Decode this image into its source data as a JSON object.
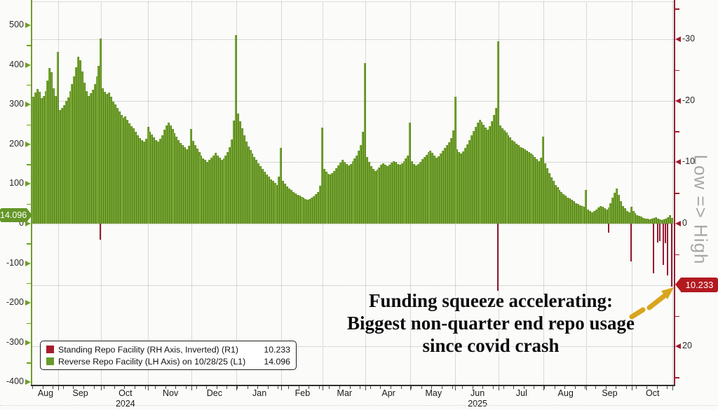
{
  "chart_data": {
    "type": "bar",
    "title": "",
    "left_axis": {
      "tick_labels": [
        500,
        400,
        300,
        200,
        100,
        0,
        -100,
        -200,
        -300,
        -400
      ],
      "minor_ticks": [
        450,
        350,
        250,
        150,
        50,
        -50,
        -150,
        -250,
        -350
      ],
      "range": [
        -430,
        565
      ],
      "current_value_badge": "14.096"
    },
    "right_axis": {
      "inverted": true,
      "tick_labels": [
        -30,
        -20,
        -10,
        0,
        20
      ],
      "minor_ticks": [
        -35,
        -25,
        -15,
        -5,
        5,
        15,
        25
      ],
      "gridline_values": [
        -30,
        -20,
        -10,
        0,
        10,
        20
      ],
      "range": [
        -36,
        26
      ],
      "current_value_badge": "10.233",
      "side_label": "Low => High"
    },
    "x_axis": {
      "months": [
        {
          "label": "Aug",
          "days": 13
        },
        {
          "label": "Sep",
          "days": 21
        },
        {
          "label": "Oct",
          "days": 23
        },
        {
          "label": "Nov",
          "days": 21
        },
        {
          "label": "Dec",
          "days": 22
        },
        {
          "label": "Jan",
          "days": 22
        },
        {
          "label": "Feb",
          "days": 20
        },
        {
          "label": "Mar",
          "days": 21
        },
        {
          "label": "Apr",
          "days": 22
        },
        {
          "label": "May",
          "days": 22
        },
        {
          "label": "Jun",
          "days": 21
        },
        {
          "label": "Jul",
          "days": 22
        },
        {
          "label": "Aug",
          "days": 21
        },
        {
          "label": "Sep",
          "days": 22
        },
        {
          "label": "Oct",
          "days": 20
        }
      ],
      "years": [
        {
          "label": "2024",
          "month_index": 2
        },
        {
          "label": "2025",
          "month_index": 10
        }
      ]
    },
    "series": [
      {
        "name": "Reverse Repo Facility (LH Axis) on 10/28/25 (L1)",
        "axis": "left",
        "color": "#77a633",
        "last_value": 14.096,
        "values": [
          319,
          331,
          340,
          332,
          316,
          322,
          334,
          361,
          392,
          381,
          341,
          322,
          433,
          287,
          292,
          299,
          310,
          318,
          334,
          352,
          371,
          394,
          421,
          412,
          383,
          356,
          334,
          322,
          328,
          338,
          352,
          371,
          397,
          466,
          341,
          332,
          326,
          330,
          319,
          308,
          300,
          291,
          282,
          273,
          266,
          271,
          262,
          252,
          246,
          240,
          231,
          222,
          215,
          210,
          206,
          214,
          244,
          232,
          224,
          218,
          211,
          206,
          214,
          223,
          236,
          247,
          254,
          247,
          238,
          228,
          219,
          211,
          204,
          198,
          192,
          187,
          196,
          238,
          208,
          198,
          189,
          180,
          172,
          165,
          160,
          156,
          160,
          166,
          172,
          178,
          172,
          166,
          160,
          165,
          172,
          180,
          192,
          212,
          260,
          475,
          278,
          258,
          240,
          222,
          207,
          195,
          185,
          176,
          168,
          160,
          152,
          144,
          137,
          130,
          124,
          118,
          112,
          107,
          102,
          98,
          118,
          191,
          108,
          100,
          94,
          89,
          84,
          80,
          76,
          73,
          70,
          67,
          65,
          62,
          60,
          62,
          65,
          69,
          74,
          80,
          95,
          242,
          138,
          130,
          126,
          123,
          127,
          133,
          140,
          147,
          154,
          160,
          156,
          151,
          147,
          151,
          157,
          164,
          172,
          183,
          198,
          232,
          405,
          168,
          155,
          144,
          137,
          132,
          136,
          142,
          148,
          152,
          148,
          144,
          148,
          153,
          158,
          155,
          151,
          148,
          152,
          158,
          164,
          172,
          255,
          158,
          150,
          146,
          150,
          156,
          162,
          168,
          174,
          180,
          184,
          178,
          172,
          166,
          170,
          176,
          183,
          190,
          197,
          205,
          216,
          235,
          320,
          188,
          181,
          177,
          182,
          190,
          200,
          211,
          222,
          233,
          244,
          254,
          262,
          256,
          249,
          242,
          236,
          245,
          258,
          273,
          292,
          460,
          248,
          241,
          235,
          229,
          223,
          217,
          211,
          206,
          201,
          197,
          193,
          190,
          187,
          184,
          181,
          177,
          173,
          168,
          163,
          158,
          166,
          219,
          152,
          140,
          128,
          117,
          107,
          98,
          91,
          85,
          79,
          74,
          70,
          66,
          63,
          60,
          56,
          52,
          49,
          46,
          44,
          42,
          84,
          36,
          31,
          28,
          32,
          36,
          41,
          45,
          42,
          38,
          35,
          41,
          52,
          66,
          78,
          88,
          72,
          56,
          45,
          38,
          32,
          28,
          42,
          31,
          26,
          22,
          19,
          17,
          15,
          13,
          12,
          10,
          12,
          14,
          16,
          13,
          11,
          9,
          11,
          13,
          16,
          21,
          14.096
        ]
      },
      {
        "name": "Standing Repo Facility (RH Axis, Inverted) (R1)",
        "axis": "right",
        "color": "#931c31",
        "last_value": 10.233,
        "points": [
          {
            "i": 33,
            "v": 2.6
          },
          {
            "i": 227,
            "v": 11.0
          },
          {
            "i": 281,
            "v": 1.5
          },
          {
            "i": 292,
            "v": 6.2
          },
          {
            "i": 303,
            "v": 8.1
          },
          {
            "i": 305,
            "v": 3.1
          },
          {
            "i": 306,
            "v": 2.9
          },
          {
            "i": 308,
            "v": 6.7
          },
          {
            "i": 309,
            "v": 3.2
          },
          {
            "i": 310,
            "v": 8.4
          },
          {
            "i": 312,
            "v": 10.233
          }
        ]
      }
    ]
  },
  "legend": {
    "items": [
      {
        "label": "Standing Repo Facility (RH Axis, Inverted) (R1)",
        "value": "10.233",
        "swatch": "#a91c2b"
      },
      {
        "label": "Reverse Repo Facility (LH Axis) on 10/28/25 (L1)",
        "value": "14.096",
        "swatch": "#699a2b"
      }
    ]
  },
  "badges": {
    "left_value": "14.096",
    "right_value": "10.233"
  },
  "annotation": {
    "lines": [
      "Funding squeeze accelerating:",
      "Biggest non-quarter end repo usage",
      "since covid crash"
    ],
    "arrow_color": "#d9a51e"
  },
  "side_label": "Low => High"
}
